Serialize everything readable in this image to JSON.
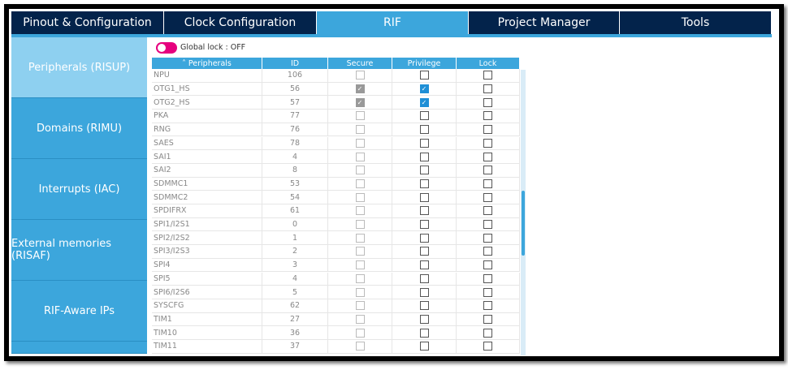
{
  "tabs": [
    "Pinout & Configuration",
    "Clock Configuration",
    "RIF",
    "Project Manager",
    "Tools"
  ],
  "active_tab": 2,
  "sidebar": [
    "Peripherals (RISUP)",
    "Domains (RIMU)",
    "Interrupts (IAC)",
    "External memories (RISAF)",
    "RIF-Aware IPs"
  ],
  "active_sidebar_item": 0,
  "global_lock": {
    "label": "Global lock : OFF",
    "on": false
  },
  "table": {
    "headers": [
      "Peripherals",
      "ID",
      "Secure",
      "Privilege",
      "Lock"
    ],
    "rows": [
      {
        "peripheral": "NPU",
        "id": 106,
        "secure": false,
        "privilege": false,
        "lock": false
      },
      {
        "peripheral": "OTG1_HS",
        "id": 56,
        "secure": true,
        "privilege": true,
        "lock": false
      },
      {
        "peripheral": "OTG2_HS",
        "id": 57,
        "secure": true,
        "privilege": true,
        "lock": false
      },
      {
        "peripheral": "PKA",
        "id": 77,
        "secure": false,
        "privilege": false,
        "lock": false
      },
      {
        "peripheral": "RNG",
        "id": 76,
        "secure": false,
        "privilege": false,
        "lock": false
      },
      {
        "peripheral": "SAES",
        "id": 78,
        "secure": false,
        "privilege": false,
        "lock": false
      },
      {
        "peripheral": "SAI1",
        "id": 4,
        "secure": false,
        "privilege": false,
        "lock": false
      },
      {
        "peripheral": "SAI2",
        "id": 8,
        "secure": false,
        "privilege": false,
        "lock": false
      },
      {
        "peripheral": "SDMMC1",
        "id": 53,
        "secure": false,
        "privilege": false,
        "lock": false
      },
      {
        "peripheral": "SDMMC2",
        "id": 54,
        "secure": false,
        "privilege": false,
        "lock": false
      },
      {
        "peripheral": "SPDIFRX",
        "id": 61,
        "secure": false,
        "privilege": false,
        "lock": false
      },
      {
        "peripheral": "SPI1/I2S1",
        "id": 0,
        "secure": false,
        "privilege": false,
        "lock": false
      },
      {
        "peripheral": "SPI2/I2S2",
        "id": 1,
        "secure": false,
        "privilege": false,
        "lock": false
      },
      {
        "peripheral": "SPI3/I2S3",
        "id": 2,
        "secure": false,
        "privilege": false,
        "lock": false
      },
      {
        "peripheral": "SPI4",
        "id": 3,
        "secure": false,
        "privilege": false,
        "lock": false
      },
      {
        "peripheral": "SPI5",
        "id": 4,
        "secure": false,
        "privilege": false,
        "lock": false
      },
      {
        "peripheral": "SPI6/I2S6",
        "id": 5,
        "secure": false,
        "privilege": false,
        "lock": false
      },
      {
        "peripheral": "SYSCFG",
        "id": 62,
        "secure": false,
        "privilege": false,
        "lock": false
      },
      {
        "peripheral": "TIM1",
        "id": 27,
        "secure": false,
        "privilege": false,
        "lock": false
      },
      {
        "peripheral": "TIM10",
        "id": 36,
        "secure": false,
        "privilege": false,
        "lock": false
      },
      {
        "peripheral": "TIM11",
        "id": 37,
        "secure": false,
        "privilege": false,
        "lock": false
      }
    ]
  }
}
